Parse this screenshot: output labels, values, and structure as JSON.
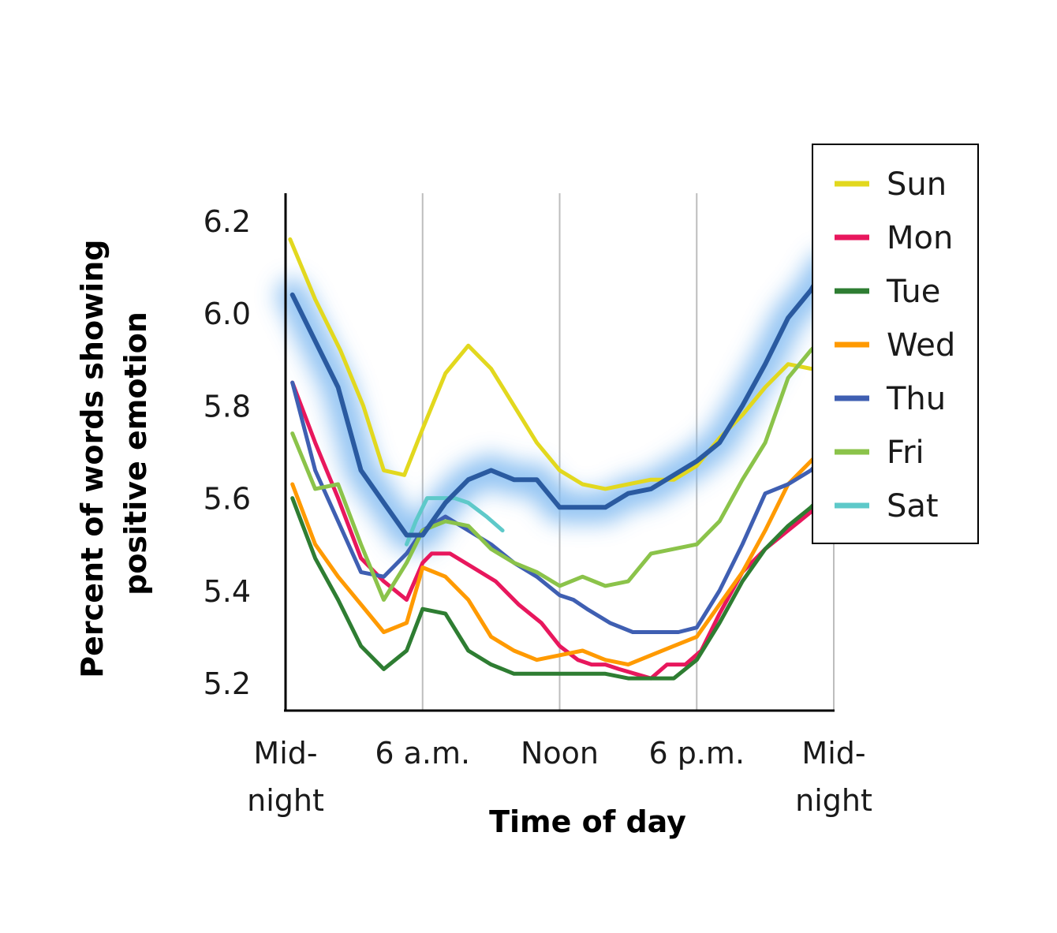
{
  "chart_data": {
    "type": "line",
    "xlabel": "Time of day",
    "ylabel": "Percent of words showing positive emotion",
    "ylim": [
      5.14,
      6.25
    ],
    "xlim": [
      0,
      24
    ],
    "y_ticks": [
      5.2,
      5.4,
      5.6,
      5.8,
      6.0,
      6.2
    ],
    "y_tick_labels": [
      "5.2",
      "5.4",
      "5.6",
      "5.8",
      "6.0",
      "6.2"
    ],
    "x_ticks": [
      {
        "value": 0,
        "lines": [
          "Mid-",
          "night"
        ]
      },
      {
        "value": 6,
        "lines": [
          "6 a.m."
        ]
      },
      {
        "value": 12,
        "lines": [
          "Noon"
        ]
      },
      {
        "value": 18,
        "lines": [
          "6 p.m."
        ]
      },
      {
        "value": 24,
        "lines": [
          "Mid-",
          "night"
        ]
      }
    ],
    "grid": "vertical at 6 a.m., Noon, 6 p.m., Midnight",
    "legend_position": "top-right",
    "series": [
      {
        "name": "Sun",
        "color": "#e2d81e",
        "x": [
          0.2,
          1.3,
          2.4,
          3.4,
          4.3,
          5.2,
          6.0,
          7.0,
          8.0,
          9.0,
          10.0,
          11.0,
          12.0,
          13.0,
          14.0,
          15.0,
          16.0,
          17.0,
          18.0,
          19.0,
          20.0,
          21.0,
          22.0,
          23.0
        ],
        "y": [
          6.16,
          6.03,
          5.92,
          5.8,
          5.66,
          5.65,
          5.75,
          5.87,
          5.93,
          5.88,
          5.8,
          5.72,
          5.66,
          5.63,
          5.62,
          5.63,
          5.64,
          5.64,
          5.67,
          5.73,
          5.78,
          5.84,
          5.89,
          5.88
        ]
      },
      {
        "name": "Mon",
        "color": "#e8175d",
        "x": [
          0.3,
          1.3,
          2.3,
          3.3,
          4.3,
          5.3,
          6.0,
          6.4,
          7.2,
          8.2,
          9.2,
          10.2,
          11.2,
          12.0,
          12.8,
          13.4,
          14.0,
          14.6,
          15.3,
          16.0,
          16.7,
          17.5,
          18.2,
          19.0,
          20.0,
          21.0,
          22.0,
          23.0,
          23.5
        ],
        "y": [
          5.85,
          5.72,
          5.6,
          5.47,
          5.42,
          5.38,
          5.46,
          5.48,
          5.48,
          5.45,
          5.42,
          5.37,
          5.33,
          5.28,
          5.25,
          5.24,
          5.24,
          5.23,
          5.22,
          5.21,
          5.24,
          5.24,
          5.27,
          5.35,
          5.44,
          5.49,
          5.53,
          5.57,
          5.6
        ]
      },
      {
        "name": "Tue",
        "color": "#2e7d32",
        "x": [
          0.3,
          1.3,
          2.3,
          3.3,
          4.3,
          5.3,
          6.0,
          7.0,
          8.0,
          9.0,
          10.0,
          11.0,
          12.0,
          13.0,
          14.0,
          15.0,
          16.0,
          17.0,
          18.0,
          19.0,
          20.0,
          21.0,
          22.0,
          23.0,
          23.6
        ],
        "y": [
          5.6,
          5.47,
          5.38,
          5.28,
          5.23,
          5.27,
          5.36,
          5.35,
          5.27,
          5.24,
          5.22,
          5.22,
          5.22,
          5.22,
          5.22,
          5.21,
          5.21,
          5.21,
          5.25,
          5.33,
          5.42,
          5.49,
          5.54,
          5.58,
          5.61
        ]
      },
      {
        "name": "Wed",
        "color": "#ff9a00",
        "x": [
          0.3,
          1.3,
          2.3,
          3.3,
          4.3,
          5.3,
          6.0,
          7.0,
          8.0,
          9.0,
          10.0,
          11.0,
          12.0,
          13.0,
          14.0,
          15.0,
          16.0,
          17.0,
          18.0,
          19.0,
          20.0,
          21.0,
          22.0,
          23.0,
          23.6
        ],
        "y": [
          5.63,
          5.5,
          5.43,
          5.37,
          5.31,
          5.33,
          5.45,
          5.43,
          5.38,
          5.3,
          5.27,
          5.25,
          5.26,
          5.27,
          5.25,
          5.24,
          5.26,
          5.28,
          5.3,
          5.37,
          5.44,
          5.53,
          5.63,
          5.68,
          5.71
        ]
      },
      {
        "name": "Thu",
        "color": "#3f5fb2",
        "x": [
          0.3,
          1.3,
          2.3,
          3.3,
          4.3,
          5.3,
          6.0,
          7.0,
          8.0,
          9.0,
          10.0,
          11.0,
          12.0,
          12.6,
          13.2,
          14.2,
          15.2,
          16.2,
          17.2,
          18.0,
          19.0,
          20.0,
          21.0,
          22.0,
          23.0,
          23.6
        ],
        "y": [
          5.85,
          5.66,
          5.55,
          5.44,
          5.43,
          5.48,
          5.53,
          5.56,
          5.53,
          5.5,
          5.46,
          5.43,
          5.39,
          5.38,
          5.36,
          5.33,
          5.31,
          5.31,
          5.31,
          5.32,
          5.4,
          5.5,
          5.61,
          5.63,
          5.66,
          5.69
        ]
      },
      {
        "name": "Fri",
        "color": "#8bc34a",
        "x": [
          0.3,
          1.3,
          2.3,
          3.3,
          4.3,
          5.3,
          6.0,
          7.0,
          8.0,
          9.0,
          10.0,
          11.0,
          12.0,
          13.0,
          14.0,
          15.0,
          16.0,
          17.0,
          18.0,
          19.0,
          20.0,
          21.0,
          22.0,
          23.0,
          23.6
        ],
        "y": [
          5.74,
          5.62,
          5.63,
          5.5,
          5.38,
          5.46,
          5.53,
          5.55,
          5.54,
          5.49,
          5.46,
          5.44,
          5.41,
          5.43,
          5.41,
          5.42,
          5.48,
          5.49,
          5.5,
          5.55,
          5.64,
          5.72,
          5.86,
          5.92,
          5.95
        ]
      },
      {
        "name": "Sat",
        "color": "#5ec9c9",
        "x": [
          5.3,
          5.7,
          6.2,
          6.8,
          7.4,
          8.0,
          8.8,
          9.5
        ],
        "y": [
          5.5,
          5.55,
          5.6,
          5.6,
          5.6,
          5.59,
          5.56,
          5.53
        ]
      }
    ],
    "highlight": {
      "series": "Thu",
      "color": "#2a5aa0",
      "x": [
        0.3,
        1.3,
        2.3,
        3.3,
        4.3,
        5.3,
        6.0,
        7.0,
        8.0,
        9.0,
        10.0,
        11.0,
        12.0,
        13.0,
        14.0,
        15.0,
        16.0,
        17.0,
        18.0,
        19.0,
        20.0,
        21.0,
        22.0,
        23.0,
        23.6
      ],
      "y": [
        6.04,
        5.94,
        5.84,
        5.66,
        5.59,
        5.52,
        5.52,
        5.59,
        5.64,
        5.66,
        5.64,
        5.64,
        5.58,
        5.58,
        5.58,
        5.61,
        5.62,
        5.65,
        5.68,
        5.72,
        5.8,
        5.89,
        5.99,
        6.05,
        6.1
      ]
    }
  }
}
